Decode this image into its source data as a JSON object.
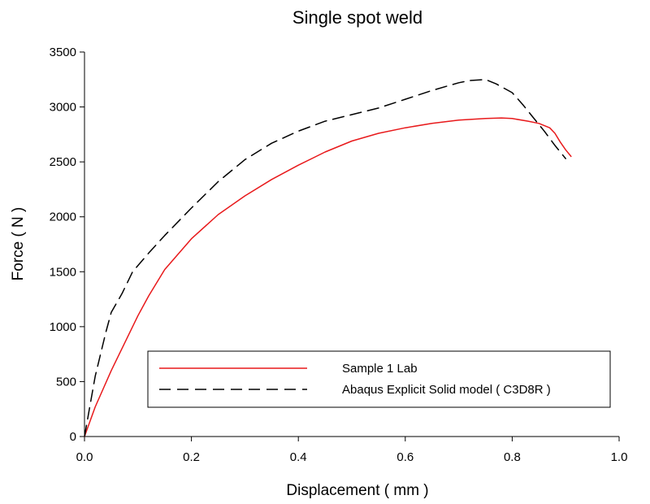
{
  "chart_data": {
    "type": "line",
    "title": "Single spot weld",
    "xlabel": "Displacement ( mm )",
    "ylabel": "Force ( N )",
    "xlim": [
      0.0,
      1.0
    ],
    "ylim": [
      0,
      3500
    ],
    "xticks": [
      0.0,
      0.2,
      0.4,
      0.6,
      0.8,
      1.0
    ],
    "xtick_labels": [
      "0.0",
      "0.2",
      "0.4",
      "0.6",
      "0.8",
      "1.0"
    ],
    "yticks": [
      0,
      500,
      1000,
      1500,
      2000,
      2500,
      3000,
      3500
    ],
    "ytick_labels": [
      "0",
      "500",
      "1000",
      "1500",
      "2000",
      "2500",
      "3000",
      "3500"
    ],
    "grid": false,
    "legend_position": "lower-right",
    "series": [
      {
        "name": "Sample 1 Lab",
        "color": "#e8191b",
        "style": "solid",
        "x": [
          0.0,
          0.02,
          0.05,
          0.08,
          0.1,
          0.12,
          0.15,
          0.2,
          0.25,
          0.3,
          0.35,
          0.4,
          0.45,
          0.5,
          0.55,
          0.6,
          0.65,
          0.7,
          0.75,
          0.78,
          0.8,
          0.83,
          0.85,
          0.87,
          0.88,
          0.89,
          0.9,
          0.91
        ],
        "y": [
          0,
          270,
          600,
          900,
          1100,
          1280,
          1520,
          1800,
          2020,
          2190,
          2340,
          2470,
          2590,
          2690,
          2760,
          2810,
          2850,
          2880,
          2895,
          2900,
          2895,
          2870,
          2850,
          2810,
          2760,
          2680,
          2610,
          2550
        ]
      },
      {
        "name": "Abaqus Explicit Solid model ( C3D8R )",
        "color": "#000000",
        "style": "dashed",
        "x": [
          0.0,
          0.02,
          0.04,
          0.05,
          0.07,
          0.09,
          0.12,
          0.15,
          0.2,
          0.25,
          0.3,
          0.35,
          0.4,
          0.45,
          0.5,
          0.55,
          0.6,
          0.65,
          0.7,
          0.72,
          0.75,
          0.77,
          0.8,
          0.82,
          0.84,
          0.86,
          0.88,
          0.9
        ],
        "y": [
          0,
          550,
          950,
          1130,
          1300,
          1500,
          1670,
          1830,
          2080,
          2320,
          2520,
          2670,
          2780,
          2870,
          2930,
          2990,
          3070,
          3150,
          3220,
          3240,
          3250,
          3210,
          3130,
          3020,
          2900,
          2780,
          2650,
          2530
        ]
      }
    ]
  }
}
